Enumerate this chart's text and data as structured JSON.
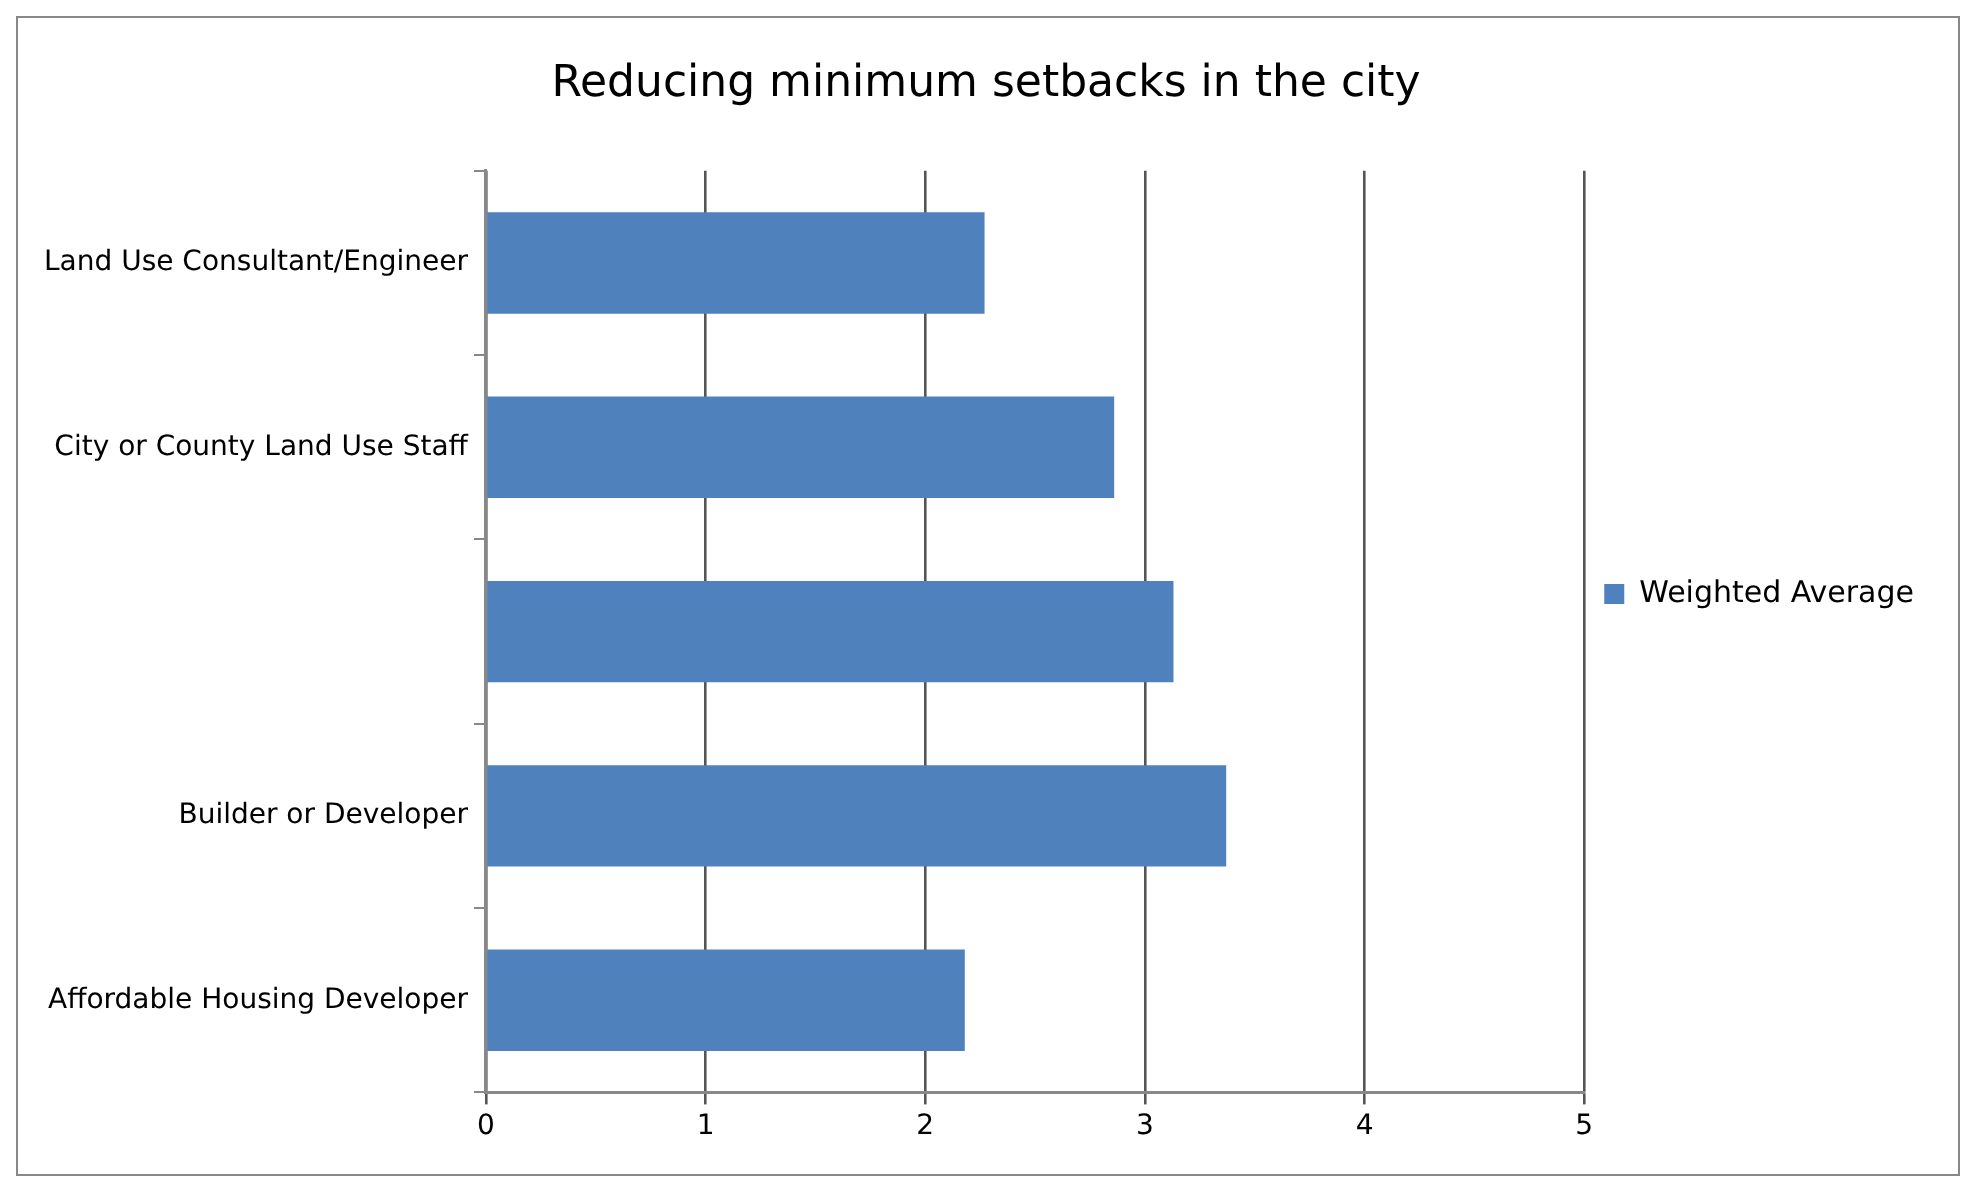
{
  "chart_data": {
    "type": "bar",
    "orientation": "horizontal",
    "title": "Reducing minimum setbacks in the city",
    "categories": [
      "Land Use Consultant/Engineer",
      "City or County Land Use Staff",
      null,
      "Builder or Developer",
      "Affordable Housing Developer"
    ],
    "series": [
      {
        "name": "Weighted Average",
        "color": "#4f81bd",
        "values": [
          2.27,
          2.86,
          3.13,
          3.37,
          2.18
        ]
      }
    ],
    "xlim": [
      0,
      5
    ],
    "xticks": [
      0,
      1,
      2,
      3,
      4,
      5
    ],
    "grid": "x",
    "legend": "right"
  }
}
